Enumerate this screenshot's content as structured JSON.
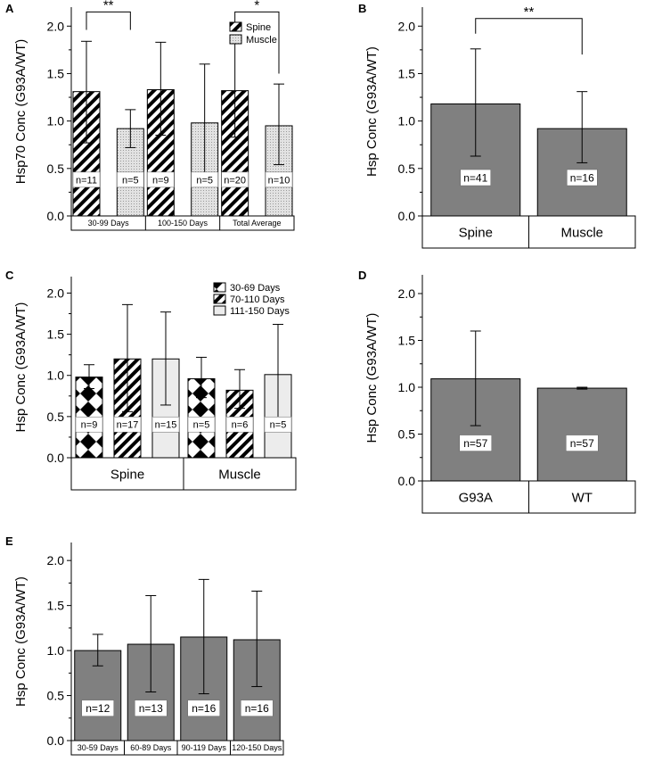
{
  "colors": {
    "dark_bar": "#808080",
    "muscle_bar": "#d4d4d4",
    "light_bar": "#ececec",
    "bar_stroke": "#000000",
    "text": "#000000",
    "background": "#ffffff"
  },
  "chart_data": [
    {
      "panel": "A",
      "type": "bar",
      "ylabel": "Hsp70 Conc (G93A/WT)",
      "ylim": [
        0,
        2.2
      ],
      "yticks": [
        "0.0",
        "0.5",
        "1.0",
        "1.5",
        "2.0"
      ],
      "categories": [
        "30-99 Days",
        "100-150 Days",
        "Total Average"
      ],
      "legend": [
        {
          "label": "Spine",
          "pattern": "hatch"
        },
        {
          "label": "Muscle",
          "pattern": "dots"
        }
      ],
      "bars": [
        {
          "group": 0,
          "series": "Spine",
          "pattern": "hatch",
          "value": 1.31,
          "err_low": 0.77,
          "err_high": 1.84,
          "n": "n=11"
        },
        {
          "group": 0,
          "series": "Muscle",
          "pattern": "dots",
          "value": 0.92,
          "err_low": 0.72,
          "err_high": 1.12,
          "n": "n=5"
        },
        {
          "group": 1,
          "series": "Spine",
          "pattern": "hatch",
          "value": 1.33,
          "err_low": 0.85,
          "err_high": 1.83,
          "n": "n=9"
        },
        {
          "group": 1,
          "series": "Muscle",
          "pattern": "dots",
          "value": 0.98,
          "err_low": 0.38,
          "err_high": 1.6,
          "n": "n=5"
        },
        {
          "group": 2,
          "series": "Spine",
          "pattern": "hatch",
          "value": 1.32,
          "err_low": 0.83,
          "err_high": 1.82,
          "n": "n=20"
        },
        {
          "group": 2,
          "series": "Muscle",
          "pattern": "dots",
          "value": 0.95,
          "err_low": 0.54,
          "err_high": 1.39,
          "n": "n=10"
        }
      ],
      "significance": [
        {
          "from": 0,
          "to": 1,
          "label": "**",
          "y": 2.15,
          "drop_from": 1.96,
          "drop_to": 1.96
        },
        {
          "from": 4,
          "to": 5,
          "label": "*",
          "y": 2.15,
          "drop_from": 1.96,
          "drop_to": 1.5
        }
      ]
    },
    {
      "panel": "B",
      "type": "bar",
      "ylabel": "Hsp Conc (G93A/WT)",
      "ylim": [
        0,
        2.2
      ],
      "yticks": [
        "0.0",
        "0.5",
        "1.0",
        "1.5",
        "2.0"
      ],
      "categories": [
        "Spine",
        "Muscle"
      ],
      "bars": [
        {
          "group": 0,
          "pattern": "solid",
          "value": 1.18,
          "err_low": 0.63,
          "err_high": 1.76,
          "n": "n=41"
        },
        {
          "group": 1,
          "pattern": "solid",
          "value": 0.92,
          "err_low": 0.56,
          "err_high": 1.31,
          "n": "n=16"
        }
      ],
      "significance": [
        {
          "from": 0,
          "to": 1,
          "label": "**",
          "y": 2.08,
          "drop_from": 1.92,
          "drop_to": 1.7
        }
      ]
    },
    {
      "panel": "C",
      "type": "bar",
      "ylabel": "Hsp Conc (G93A/WT)",
      "ylim": [
        0,
        2.2
      ],
      "yticks": [
        "0.0",
        "0.5",
        "1.0",
        "1.5",
        "2.0"
      ],
      "categories": [
        "Spine",
        "Muscle"
      ],
      "legend": [
        {
          "label": "30-69 Days",
          "pattern": "diamond"
        },
        {
          "label": "70-110 Days",
          "pattern": "hatch"
        },
        {
          "label": "111-150 Days",
          "pattern": "light"
        }
      ],
      "bars": [
        {
          "group": 0,
          "series": "30-69 Days",
          "pattern": "diamond",
          "value": 0.98,
          "err_low": 0.84,
          "err_high": 1.13,
          "n": "n=9"
        },
        {
          "group": 0,
          "series": "70-110 Days",
          "pattern": "hatch",
          "value": 1.2,
          "err_low": 0.56,
          "err_high": 1.86,
          "n": "n=17"
        },
        {
          "group": 0,
          "series": "111-150 Days",
          "pattern": "light",
          "value": 1.2,
          "err_low": 0.64,
          "err_high": 1.77,
          "n": "n=15"
        },
        {
          "group": 1,
          "series": "30-69 Days",
          "pattern": "diamond",
          "value": 0.96,
          "err_low": 0.73,
          "err_high": 1.22,
          "n": "n=5"
        },
        {
          "group": 1,
          "series": "70-110 Days",
          "pattern": "hatch",
          "value": 0.82,
          "err_low": 0.6,
          "err_high": 1.07,
          "n": "n=6"
        },
        {
          "group": 1,
          "series": "111-150 Days",
          "pattern": "light",
          "value": 1.01,
          "err_low": 0.4,
          "err_high": 1.62,
          "n": "n=5"
        }
      ]
    },
    {
      "panel": "D",
      "type": "bar",
      "ylabel": "Hsp Conc (G93A/WT)",
      "ylim": [
        0,
        2.2
      ],
      "yticks": [
        "0.0",
        "0.5",
        "1.0",
        "1.5",
        "2.0"
      ],
      "categories": [
        "G93A",
        "WT"
      ],
      "bars": [
        {
          "group": 0,
          "pattern": "solid",
          "value": 1.09,
          "err_low": 0.59,
          "err_high": 1.6,
          "n": "n=57"
        },
        {
          "group": 1,
          "pattern": "solid",
          "value": 0.99,
          "err_low": 0.98,
          "err_high": 1.0,
          "n": "n=57"
        }
      ]
    },
    {
      "panel": "E",
      "type": "bar",
      "ylabel": "Hsp Conc (G93A/WT)",
      "ylim": [
        0,
        2.2
      ],
      "yticks": [
        "0.0",
        "0.5",
        "1.0",
        "1.5",
        "2.0"
      ],
      "categories": [
        "30-59 Days",
        "60-89 Days",
        "90-119 Days",
        "120-150 Days"
      ],
      "bars": [
        {
          "group": 0,
          "pattern": "solid",
          "value": 1.0,
          "err_low": 0.83,
          "err_high": 1.18,
          "n": "n=12"
        },
        {
          "group": 1,
          "pattern": "solid",
          "value": 1.07,
          "err_low": 0.54,
          "err_high": 1.61,
          "n": "n=13"
        },
        {
          "group": 2,
          "pattern": "solid",
          "value": 1.15,
          "err_low": 0.52,
          "err_high": 1.79,
          "n": "n=16"
        },
        {
          "group": 3,
          "pattern": "solid",
          "value": 1.12,
          "err_low": 0.6,
          "err_high": 1.66,
          "n": "n=16"
        }
      ]
    }
  ]
}
